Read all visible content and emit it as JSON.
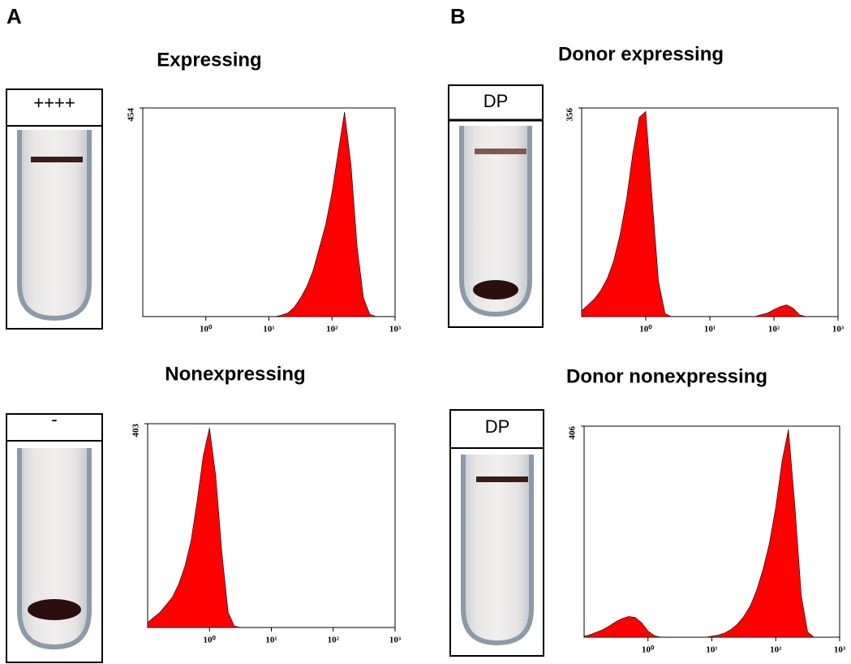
{
  "panel_labels": [
    "A",
    "B"
  ],
  "chart_data": [
    {
      "type": "area",
      "title": "Expressing",
      "tube_label": "++++",
      "color": "#ff0000",
      "log_x": true,
      "x": [
        0.1,
        0.126,
        0.158,
        0.2,
        0.251,
        0.316,
        0.398,
        0.501,
        0.631,
        0.794,
        1,
        1.26,
        1.58,
        2,
        2.51,
        3.16,
        3.98,
        5.01,
        6.31,
        7.94,
        10,
        12.6,
        15.8,
        20,
        25.1,
        31.6,
        39.8,
        50.1,
        63.1,
        79.4,
        100,
        126,
        158,
        200,
        251,
        316,
        398,
        501,
        631,
        794,
        1000
      ],
      "values": [
        0,
        0,
        0,
        0,
        0,
        0,
        0,
        0,
        0,
        0,
        0,
        0,
        0,
        0,
        0,
        0,
        0,
        0,
        0,
        0,
        0,
        0,
        3,
        8,
        20,
        40,
        65,
        100,
        150,
        200,
        270,
        360,
        445,
        330,
        150,
        40,
        5,
        0,
        0,
        0,
        0
      ],
      "xlim": [
        0.1,
        1000
      ],
      "ylim": [
        0,
        454
      ],
      "yticks": [
        454
      ],
      "xticks": [
        {
          "value": 1,
          "label": "10⁰"
        },
        {
          "value": 10,
          "label": "10¹"
        },
        {
          "value": 100,
          "label": "10²"
        },
        {
          "value": 1000,
          "label": "10³"
        }
      ]
    },
    {
      "type": "area",
      "title": "Donor expressing",
      "tube_label": "DP",
      "color": "#ff0000",
      "log_x": true,
      "x": [
        0.1,
        0.126,
        0.158,
        0.2,
        0.251,
        0.316,
        0.398,
        0.501,
        0.631,
        0.794,
        1,
        1.26,
        1.58,
        2,
        2.51,
        3.16,
        3.98,
        5.01,
        6.31,
        7.94,
        10,
        12.6,
        15.8,
        20,
        25.1,
        31.6,
        39.8,
        50.1,
        63.1,
        79.4,
        100,
        126,
        158,
        200,
        251,
        316,
        398,
        501,
        631,
        794,
        1000
      ],
      "values": [
        10,
        20,
        30,
        45,
        65,
        95,
        140,
        200,
        280,
        340,
        350,
        200,
        60,
        5,
        0,
        0,
        0,
        0,
        0,
        0,
        0,
        0,
        0,
        0,
        0,
        0,
        0,
        0,
        3,
        6,
        12,
        17,
        20,
        14,
        3,
        0,
        0,
        0,
        0,
        0,
        0
      ],
      "xlim": [
        0.1,
        1000
      ],
      "ylim": [
        0,
        356
      ],
      "yticks": [
        356
      ],
      "xticks": [
        {
          "value": 1,
          "label": "10⁰"
        },
        {
          "value": 10,
          "label": "10¹"
        },
        {
          "value": 100,
          "label": "10²"
        },
        {
          "value": 1000,
          "label": "10³"
        }
      ]
    },
    {
      "type": "area",
      "title": "Nonexpressing",
      "tube_label": "-",
      "color": "#ff0000",
      "log_x": true,
      "x": [
        0.1,
        0.126,
        0.158,
        0.2,
        0.251,
        0.316,
        0.398,
        0.501,
        0.631,
        0.794,
        1,
        1.26,
        1.58,
        2,
        2.51,
        3.16,
        3.98,
        5.01,
        6.31,
        7.94,
        10,
        12.6,
        15.8,
        20,
        25.1,
        31.6,
        39.8,
        50.1,
        63.1,
        79.4,
        100,
        126,
        158,
        200,
        251,
        316,
        398,
        501,
        631,
        794,
        1000
      ],
      "values": [
        10,
        20,
        30,
        45,
        60,
        85,
        120,
        170,
        250,
        340,
        395,
        300,
        150,
        30,
        3,
        0,
        0,
        0,
        0,
        0,
        0,
        0,
        0,
        0,
        0,
        0,
        0,
        0,
        0,
        0,
        0,
        0,
        0,
        0,
        0,
        0,
        0,
        0,
        0,
        0,
        0
      ],
      "xlim": [
        0.1,
        1000
      ],
      "ylim": [
        0,
        403
      ],
      "yticks": [
        403
      ],
      "xticks": [
        {
          "value": 1,
          "label": "10⁰"
        },
        {
          "value": 10,
          "label": "10¹"
        },
        {
          "value": 100,
          "label": "10²"
        },
        {
          "value": 1000,
          "label": "10³"
        }
      ]
    },
    {
      "type": "area",
      "title": "Donor nonexpressing",
      "tube_label": "DP",
      "color": "#ff0000",
      "log_x": true,
      "x": [
        0.1,
        0.126,
        0.158,
        0.2,
        0.251,
        0.316,
        0.398,
        0.501,
        0.631,
        0.794,
        1,
        1.26,
        1.58,
        2,
        2.51,
        3.16,
        3.98,
        5.01,
        6.31,
        7.94,
        10,
        12.6,
        15.8,
        20,
        25.1,
        31.6,
        39.8,
        50.1,
        63.1,
        79.4,
        100,
        126,
        158,
        200,
        251,
        316,
        398,
        501,
        631,
        794,
        1000
      ],
      "values": [
        2,
        5,
        10,
        15,
        22,
        30,
        36,
        40,
        38,
        28,
        12,
        3,
        0,
        0,
        0,
        0,
        0,
        0,
        0,
        0,
        2,
        4,
        8,
        15,
        25,
        40,
        60,
        90,
        130,
        180,
        250,
        340,
        400,
        250,
        80,
        10,
        0,
        0,
        0,
        0,
        0
      ],
      "xlim": [
        0.1,
        1000
      ],
      "ylim": [
        0,
        406
      ],
      "yticks": [
        406
      ],
      "xticks": [
        {
          "value": 1,
          "label": "10⁰"
        },
        {
          "value": 10,
          "label": "10¹"
        },
        {
          "value": 100,
          "label": "10²"
        },
        {
          "value": 1000,
          "label": "10³"
        }
      ]
    }
  ]
}
